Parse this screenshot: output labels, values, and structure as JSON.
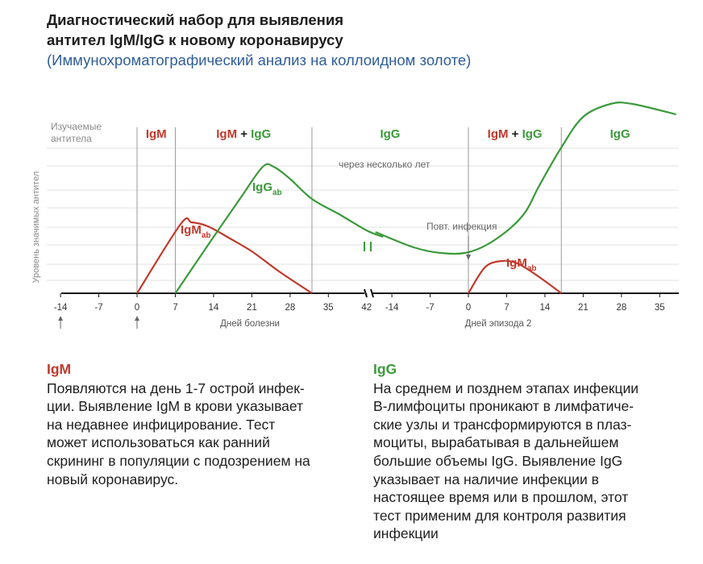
{
  "title_lines": [
    "Диагностический набор для выявления",
    "антител IgM/IgG к новому коронавирусу"
  ],
  "subtitle": "(Иммунохроматографический анализ на коллоидном золоте)",
  "colors": {
    "igm": "#c0392b",
    "igg": "#3a9a3a",
    "subtitle": "#2f5d9a",
    "grid": "#e2e2e2",
    "divider": "#9a9a9a",
    "axis": "#111111"
  },
  "chart": {
    "header_label_lines": [
      "Изучаемые",
      "антитела"
    ],
    "phases": [
      {
        "parts": [
          {
            "text": "IgM",
            "color": "igm"
          }
        ]
      },
      {
        "parts": [
          {
            "text": "IgM",
            "color": "igm"
          },
          {
            "text": " + ",
            "color": "text"
          },
          {
            "text": "IgG",
            "color": "igg"
          }
        ]
      },
      {
        "parts": [
          {
            "text": "IgG",
            "color": "igg"
          }
        ]
      },
      {
        "parts": [
          {
            "text": "IgM",
            "color": "igm"
          },
          {
            "text": " + ",
            "color": "text"
          },
          {
            "text": "IgG",
            "color": "igg"
          }
        ]
      },
      {
        "parts": [
          {
            "text": "IgG",
            "color": "igg"
          }
        ]
      }
    ],
    "y_axis_label": "Уровень значимых антител",
    "segment1": {
      "x_ticks": [
        "-14",
        "-7",
        "0",
        "7",
        "14",
        "21",
        "28",
        "35",
        "42"
      ],
      "x_label": "Дней болезни",
      "phase_boundaries": [
        0,
        7,
        32
      ]
    },
    "segment2": {
      "x_ticks": [
        "-14",
        "-7",
        "0",
        "7",
        "14",
        "21",
        "28",
        "35"
      ],
      "x_label": "Дней эпизода 2",
      "phase_boundaries": [
        0,
        17
      ]
    },
    "annotations": {
      "years_later": "через несколько лет",
      "reinfection": "Повт. инфекция",
      "igm_label": "IgM",
      "igm_sub": "ab",
      "igg_label": "IgG",
      "igg_sub": "ab",
      "igm2_label": "IgM",
      "igm2_sub": "ab"
    },
    "series": [
      {
        "name": "IgM",
        "segment": 1,
        "color": "igm",
        "points": [
          [
            0,
            0
          ],
          [
            8,
            0.86
          ],
          [
            10,
            0.88
          ],
          [
            13,
            0.83
          ],
          [
            17,
            0.68
          ],
          [
            21,
            0.52
          ],
          [
            26,
            0.27
          ],
          [
            32,
            0
          ]
        ]
      },
      {
        "name": "IgG",
        "segment": 1,
        "color": "igg",
        "points": [
          [
            7,
            0
          ],
          [
            13,
            0.6
          ],
          [
            19,
            1.19
          ],
          [
            23,
            1.57
          ],
          [
            25,
            1.57
          ],
          [
            28,
            1.42
          ],
          [
            32,
            1.17
          ],
          [
            37,
            0.98
          ],
          [
            42,
            0.78
          ],
          [
            45,
            0.7
          ]
        ]
      },
      {
        "name": "IgG",
        "segment": 2,
        "color": "igg",
        "points": [
          [
            -17,
            0.76
          ],
          [
            -10,
            0.57
          ],
          [
            -5,
            0.5
          ],
          [
            0,
            0.51
          ],
          [
            5,
            0.67
          ],
          [
            10,
            0.97
          ],
          [
            13,
            1.34
          ],
          [
            17,
            1.81
          ],
          [
            21,
            2.19
          ],
          [
            26,
            2.35
          ],
          [
            30,
            2.35
          ],
          [
            38,
            2.22
          ]
        ]
      },
      {
        "name": "IgM",
        "segment": 2,
        "color": "igm",
        "points": [
          [
            0,
            0
          ],
          [
            3,
            0.32
          ],
          [
            6,
            0.4
          ],
          [
            9,
            0.37
          ],
          [
            13,
            0.2
          ],
          [
            17,
            0
          ]
        ]
      }
    ]
  },
  "notes": [
    {
      "heading": "IgM",
      "lines": [
        "Появляются на день 1-7 острой инфек-",
        "ции. Выявление IgM в крови указывает",
        "на недавнее инфицирование. Тест",
        "может использоваться как ранний",
        "скрининг в популяции с подозрением на",
        "новый коронавирус."
      ]
    },
    {
      "heading": "IgG",
      "lines": [
        "На среднем и позднем этапах инфекции",
        "B-лимфоциты проникают в лимфатиче-",
        "ские узлы и трансформируются в плаз-",
        "моциты, вырабатывая в дальнейшем",
        "большие объемы IgG. Выявление IgG",
        "указывает на наличие инфекции в",
        "настоящее время или в прошлом, этот",
        "тест применим для контроля развития",
        "инфекции"
      ]
    }
  ]
}
